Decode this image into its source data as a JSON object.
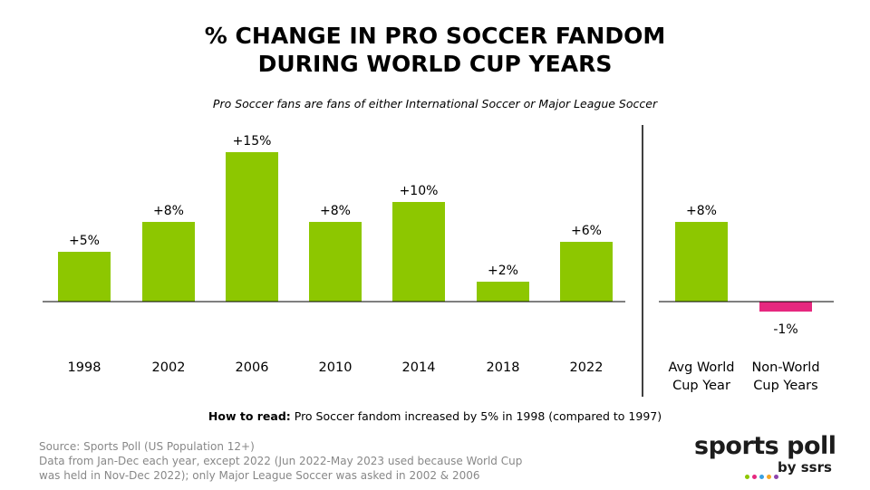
{
  "page": {
    "title_line1": "% CHANGE IN PRO SOCCER FANDOM",
    "title_line2": "DURING WORLD CUP YEARS",
    "subtitle": "Pro Soccer fans are fans of either International Soccer or Major League Soccer"
  },
  "chart_data": {
    "type": "bar",
    "title": "% CHANGE IN PRO SOCCER FANDOM DURING WORLD CUP YEARS",
    "subtitle": "Pro Soccer fans are fans of either International Soccer or Major League Soccer",
    "unit": "%",
    "groups": [
      {
        "categories": [
          "1998",
          "2002",
          "2006",
          "2010",
          "2014",
          "2018",
          "2022"
        ],
        "values": [
          5,
          8,
          15,
          8,
          10,
          2,
          6
        ],
        "labels": [
          "+5%",
          "+8%",
          "+15%",
          "+8%",
          "+10%",
          "+2%",
          "+6%"
        ]
      },
      {
        "categories": [
          [
            "Avg World",
            "Cup Year"
          ],
          [
            "Non-World",
            "Cup Years"
          ]
        ],
        "values": [
          8,
          -1
        ],
        "labels": [
          "+8%",
          "-1%"
        ]
      }
    ],
    "colors": {
      "positive": "#8dc700",
      "negative": "#e6287f",
      "axis": "#000000"
    },
    "grid": false,
    "legend": "none"
  },
  "how_to_read": {
    "label": "How to read:",
    "text": " Pro Soccer fandom increased by 5% in 1998 (compared to 1997)"
  },
  "footer": {
    "source": "Source: Sports Poll (US Population 12+)",
    "note_line1": "Data from Jan-Dec each year, except 2022 (Jun 2022-May 2023 used because World Cup",
    "note_line2": "was held in Nov-Dec 2022); only Major League Soccer was asked in 2002 & 2006"
  },
  "logo": {
    "main": "sports poll",
    "by": "by ssrs",
    "dot_colors": [
      "#8dc700",
      "#e6287f",
      "#3aa0e0",
      "#f5a623",
      "#8e44ad"
    ]
  }
}
